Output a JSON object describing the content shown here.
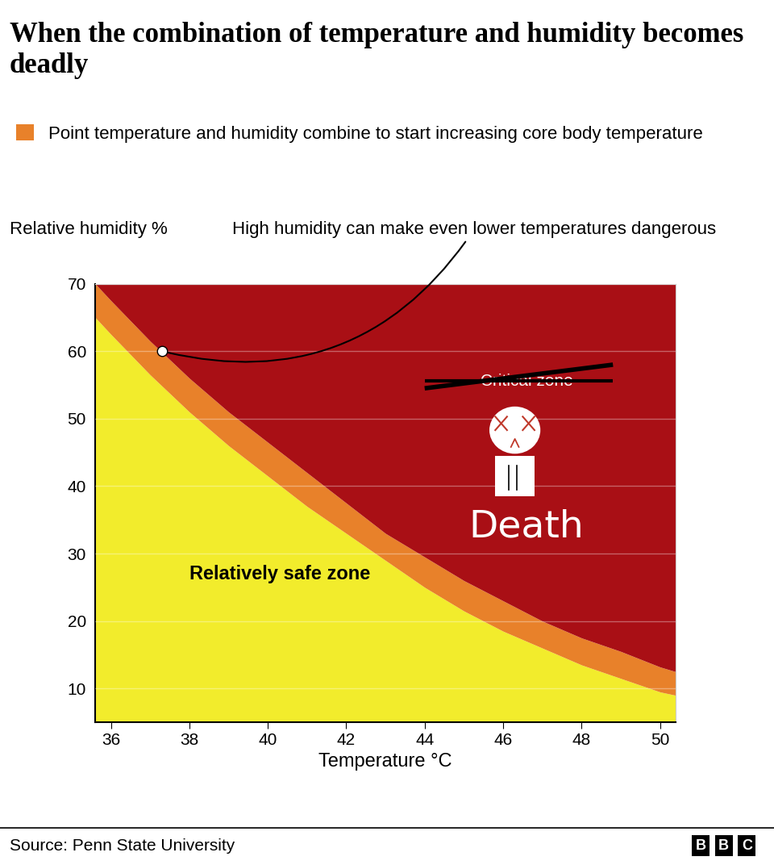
{
  "chart_data": {
    "type": "area",
    "title": "When the combination of temperature and humidity becomes deadly",
    "x_label": "Temperature °C",
    "y_label": "Relative humidity %",
    "x": [
      35.6,
      36,
      37,
      38,
      39,
      40,
      41,
      42,
      43,
      44,
      45,
      46,
      47,
      48,
      49,
      50,
      50.4
    ],
    "safe_zone": {
      "label": "Relatively safe zone",
      "color": "#f2ec2c",
      "values": [
        65,
        62.5,
        56.5,
        51,
        46,
        41.5,
        37,
        33,
        29,
        25,
        21.5,
        18.5,
        16,
        13.5,
        11.5,
        9.5,
        9
      ]
    },
    "series": [
      {
        "name": "Point temperature and humidity combine to start increasing core body temperature",
        "color": "#e8812a",
        "values": [
          70,
          67.5,
          61.5,
          56,
          51,
          46.5,
          42,
          37.5,
          33,
          29.5,
          26,
          23,
          20,
          17.5,
          15.5,
          13.2,
          12.5
        ]
      }
    ],
    "danger_zone": {
      "label": "Death",
      "crossed_out_label": "Critical zone",
      "color": "#a90f15"
    },
    "annotation": {
      "text": "High humidity can make even lower temperatures dangerous",
      "x": 37.3,
      "y": 60
    },
    "xlim": [
      35.6,
      50.4
    ],
    "ylim": [
      5,
      70
    ],
    "xticks": [
      36,
      38,
      40,
      42,
      44,
      46,
      48,
      50
    ],
    "yticks": [
      10,
      20,
      30,
      40,
      50,
      60,
      70
    ],
    "grid": true,
    "legend": "upper left",
    "source": "Source: Penn State University",
    "logo": "BBC"
  }
}
